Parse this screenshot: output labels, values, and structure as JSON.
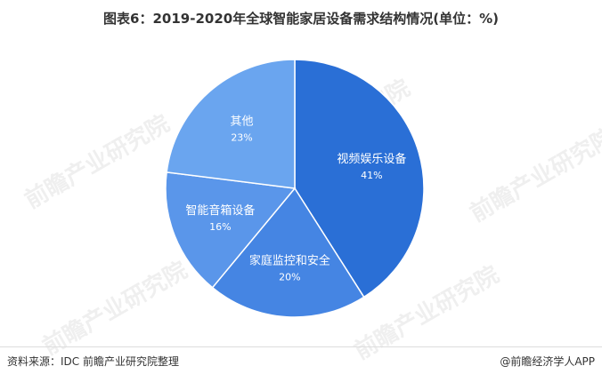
{
  "header": {
    "title": "图表6：2019-2020年全球智能家居设备需求结构情况(单位：%)"
  },
  "watermark": {
    "text": "前瞻产业研究院"
  },
  "chart_data": {
    "type": "pie",
    "title": "图表6：2019-2020年全球智能家居设备需求结构情况(单位：%)",
    "slices": [
      {
        "label": "视频娱乐设备",
        "value": 41,
        "value_label": "41%",
        "color": "#2a6fd6"
      },
      {
        "label": "家庭监控和安全",
        "value": 20,
        "value_label": "20%",
        "color": "#4585e3"
      },
      {
        "label": "智能音箱设备",
        "value": 16,
        "value_label": "16%",
        "color": "#5a96ea"
      },
      {
        "label": "其他",
        "value": 23,
        "value_label": "23%",
        "color": "#6aa5ef"
      }
    ],
    "start_angle_deg": 0,
    "direction": "clockwise",
    "legend": "none",
    "label_color": "#ffffff"
  },
  "footer": {
    "source": "资料来源：IDC 前瞻产业研究院整理",
    "brand": "@前瞻经济学人APP"
  }
}
